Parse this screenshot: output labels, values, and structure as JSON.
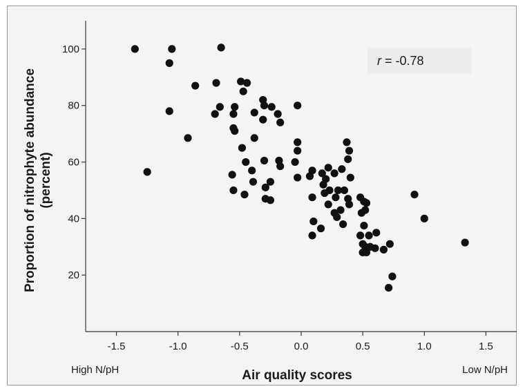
{
  "chart_data": {
    "type": "scatter",
    "title": "",
    "xlabel": "Air quality scores",
    "ylabel": [
      "Proportion of nitrophyte abundance",
      "(percent)"
    ],
    "x_end_labels": {
      "left": "High N/pH",
      "right": "Low N/pH"
    },
    "annotation": {
      "var": "r",
      "text": " = -0.78"
    },
    "xlim": [
      -1.75,
      1.75
    ],
    "ylim": [
      0,
      110
    ],
    "x_ticks": [
      -1.5,
      -1.0,
      -0.5,
      0.0,
      0.5,
      1.0,
      1.5
    ],
    "x_tick_labels": [
      "-1.5",
      "-1.0",
      "-0.5",
      "0.0",
      "0.5",
      "1.0",
      "1.5"
    ],
    "y_ticks": [
      20,
      40,
      60,
      80,
      100
    ],
    "y_tick_labels": [
      "20",
      "40",
      "60",
      "80",
      "100"
    ],
    "grid": false,
    "legend": "none",
    "colors": {
      "marker": "#111111",
      "background": "#f4f4f4",
      "axis": "#333333"
    },
    "points": [
      [
        -1.35,
        100
      ],
      [
        -1.05,
        100
      ],
      [
        -0.65,
        100.5
      ],
      [
        -1.07,
        95
      ],
      [
        -1.07,
        78
      ],
      [
        -1.25,
        56.5
      ],
      [
        -0.92,
        68.5
      ],
      [
        -0.86,
        87
      ],
      [
        -0.69,
        88
      ],
      [
        -0.7,
        77
      ],
      [
        -0.66,
        79.5
      ],
      [
        -0.54,
        79.5
      ],
      [
        -0.55,
        77
      ],
      [
        -0.49,
        88.5
      ],
      [
        -0.44,
        88
      ],
      [
        -0.47,
        85
      ],
      [
        -0.38,
        77.5
      ],
      [
        -0.31,
        82
      ],
      [
        -0.3,
        80
      ],
      [
        -0.24,
        79.5
      ],
      [
        -0.19,
        77
      ],
      [
        -0.17,
        74
      ],
      [
        -0.31,
        75
      ],
      [
        -0.38,
        68.5
      ],
      [
        -0.55,
        72
      ],
      [
        -0.54,
        71
      ],
      [
        -0.48,
        65
      ],
      [
        -0.45,
        60
      ],
      [
        -0.56,
        55.5
      ],
      [
        -0.4,
        57
      ],
      [
        -0.55,
        50
      ],
      [
        -0.46,
        48.5
      ],
      [
        -0.39,
        53
      ],
      [
        -0.3,
        60.5
      ],
      [
        -0.29,
        51
      ],
      [
        -0.25,
        53
      ],
      [
        -0.29,
        47
      ],
      [
        -0.25,
        46.5
      ],
      [
        -0.18,
        60.5
      ],
      [
        -0.17,
        58.5
      ],
      [
        -0.03,
        80
      ],
      [
        -0.03,
        67
      ],
      [
        -0.03,
        64
      ],
      [
        -0.05,
        60
      ],
      [
        -0.03,
        54.5
      ],
      [
        0.07,
        55
      ],
      [
        0.09,
        57
      ],
      [
        0.09,
        47.5
      ],
      [
        0.17,
        56
      ],
      [
        0.18,
        52
      ],
      [
        0.22,
        58
      ],
      [
        0.2,
        54
      ],
      [
        0.27,
        56
      ],
      [
        0.19,
        49
      ],
      [
        0.23,
        50
      ],
      [
        0.28,
        47.5
      ],
      [
        0.22,
        45
      ],
      [
        0.27,
        42
      ],
      [
        0.33,
        57.5
      ],
      [
        0.37,
        67
      ],
      [
        0.39,
        64
      ],
      [
        0.38,
        61
      ],
      [
        0.4,
        54.5
      ],
      [
        0.3,
        50
      ],
      [
        0.35,
        50
      ],
      [
        0.32,
        43
      ],
      [
        0.38,
        47
      ],
      [
        0.39,
        45
      ],
      [
        0.29,
        40.5
      ],
      [
        0.34,
        38
      ],
      [
        0.1,
        39
      ],
      [
        0.16,
        36.5
      ],
      [
        0.09,
        34
      ],
      [
        0.48,
        47.5
      ],
      [
        0.51,
        46
      ],
      [
        0.53,
        45.5
      ],
      [
        0.49,
        42
      ],
      [
        0.52,
        43
      ],
      [
        0.51,
        37.5
      ],
      [
        0.48,
        34
      ],
      [
        0.5,
        31
      ],
      [
        0.52,
        30
      ],
      [
        0.53,
        28
      ],
      [
        0.56,
        30
      ],
      [
        0.6,
        29.5
      ],
      [
        0.61,
        35
      ],
      [
        0.55,
        34
      ],
      [
        0.67,
        29
      ],
      [
        0.72,
        31
      ],
      [
        0.5,
        28
      ],
      [
        0.74,
        19.5
      ],
      [
        0.71,
        15.5
      ],
      [
        0.92,
        48.5
      ],
      [
        1.0,
        40
      ],
      [
        1.33,
        31.5
      ]
    ]
  }
}
